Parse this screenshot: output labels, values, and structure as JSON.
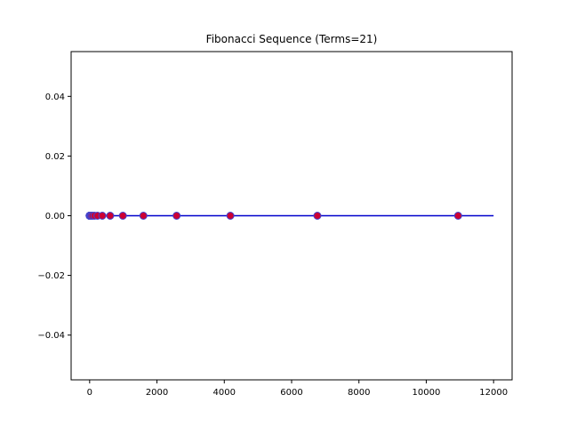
{
  "chart_data": {
    "type": "scatter",
    "title": "Fibonacci Sequence (Terms=21)",
    "xlabel": "",
    "ylabel": "",
    "xlim": [
      -550,
      12550
    ],
    "ylim": [
      -0.055,
      0.055
    ],
    "x_ticks": [
      0,
      2000,
      4000,
      6000,
      8000,
      10000,
      12000
    ],
    "x_tick_labels": [
      "0",
      "2000",
      "4000",
      "6000",
      "8000",
      "10000",
      "12000"
    ],
    "y_ticks": [
      0.04,
      0.02,
      0.0,
      -0.02,
      -0.04
    ],
    "y_tick_labels": [
      "0.04",
      "0.02",
      "0.00",
      "−0.02",
      "−0.04"
    ],
    "grid": false,
    "baseline": {
      "x": [
        0,
        12000
      ],
      "y": 0,
      "color": "#0000cc"
    },
    "points": {
      "x": [
        0,
        1,
        1,
        2,
        3,
        5,
        8,
        13,
        21,
        34,
        55,
        89,
        144,
        233,
        377,
        610,
        987,
        1597,
        2584,
        4181,
        6765,
        10946
      ],
      "y": 0,
      "fill": "#cc0033",
      "edge": "#4444cc"
    }
  }
}
